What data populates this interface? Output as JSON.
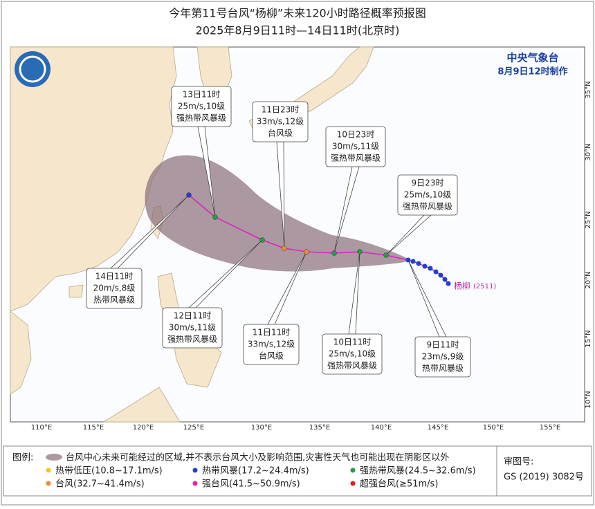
{
  "header": {
    "title": "今年第11号台风“杨柳”未来120小时路径概率预报图",
    "subtitle": "2025年8月9日11时—14日11时(北京时)"
  },
  "agency": {
    "name": "中央气象台",
    "issued": "8月9日12时制作"
  },
  "map": {
    "lon_labels": [
      "110°E",
      "115°E",
      "120°E",
      "125°E",
      "130°E",
      "135°E",
      "140°E",
      "145°E",
      "150°E",
      "155°E"
    ],
    "lat_labels": [
      "35°N",
      "30°N",
      "25°N",
      "20°N",
      "15°N",
      "10°N"
    ],
    "storm_name": "杨柳",
    "storm_code": "(2511)"
  },
  "forecasts": [
    {
      "time": "9日11时",
      "wind": "23m/s,9级",
      "level": "热带风暴级"
    },
    {
      "time": "9日23时",
      "wind": "25m/s,10级",
      "level": "强热带风暴级"
    },
    {
      "time": "10日11时",
      "wind": "25m/s,10级",
      "level": "强热带风暴级"
    },
    {
      "time": "10日23时",
      "wind": "30m/s,11级",
      "level": "强热带风暴级"
    },
    {
      "time": "11日11时",
      "wind": "33m/s,12级",
      "level": "台风级"
    },
    {
      "time": "11日23时",
      "wind": "33m/s,12级",
      "level": "台风级"
    },
    {
      "time": "12日11时",
      "wind": "30m/s,11级",
      "level": "强热带风暴级"
    },
    {
      "time": "13日11时",
      "wind": "25m/s,10级",
      "level": "强热带风暴级"
    },
    {
      "time": "14日11时",
      "wind": "20m/s,8级",
      "level": "热带风暴级"
    }
  ],
  "legend": {
    "title": "图例:",
    "cone": "台风中心未来可能经过的区域,并不表示台风大小及影响范围,灾害性天气也可能出现在阴影区以外",
    "categories": [
      {
        "label": "热带低压(10.8~17.1m/s)",
        "color": "#f5c518"
      },
      {
        "label": "热带风暴(17.2~24.4m/s)",
        "color": "#2040d0"
      },
      {
        "label": "强热带风暴(24.5~32.6m/s)",
        "color": "#20a040"
      },
      {
        "label": "台风(32.7~41.4m/s)",
        "color": "#f08c30"
      },
      {
        "label": "强台风(41.5~50.9m/s)",
        "color": "#e020c0"
      },
      {
        "label": "超强台风(≥51m/s)",
        "color": "#e02020"
      }
    ]
  },
  "approval": {
    "label": "审图号:",
    "number": "GS (2019) 3082号"
  }
}
